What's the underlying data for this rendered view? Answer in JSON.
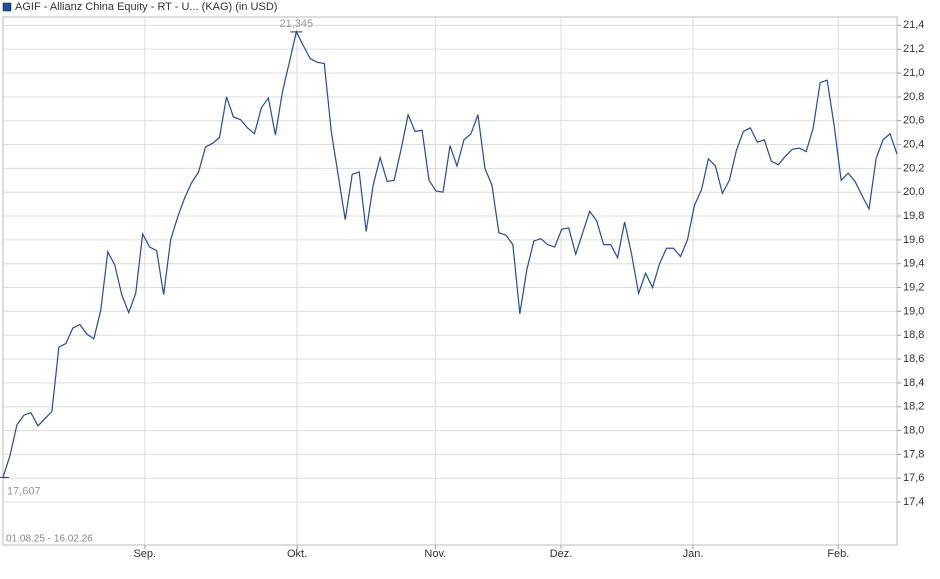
{
  "chart_data": {
    "type": "line",
    "title": "AGIF - Allianz China Equity - RT - U... (KAG) (in USD)",
    "date_range": "01.08.25 - 16.02.26",
    "series": [
      {
        "name": "AGIF - Allianz China Equity - RT - U... (KAG) (in USD)",
        "color": "#1f4e9c",
        "values": [
          17.607,
          17.79,
          18.05,
          18.13,
          18.15,
          18.04,
          18.1,
          18.16,
          18.7,
          18.73,
          18.86,
          18.89,
          18.81,
          18.77,
          19.01,
          19.5,
          19.39,
          19.14,
          18.99,
          19.15,
          19.65,
          19.54,
          19.51,
          19.14,
          19.6,
          19.79,
          19.95,
          20.08,
          20.17,
          20.38,
          20.41,
          20.46,
          20.8,
          20.63,
          20.61,
          20.54,
          20.49,
          20.71,
          20.79,
          20.48,
          20.84,
          21.09,
          21.345,
          21.23,
          21.12,
          21.09,
          21.08,
          20.51,
          20.14,
          19.77,
          20.15,
          20.17,
          19.67,
          20.06,
          20.29,
          20.09,
          20.1,
          20.36,
          20.65,
          20.51,
          20.52,
          20.1,
          20.01,
          20.0,
          20.39,
          20.22,
          20.44,
          20.49,
          20.65,
          20.2,
          20.06,
          19.66,
          19.64,
          19.56,
          18.98,
          19.35,
          19.59,
          19.61,
          19.56,
          19.54,
          19.69,
          19.7,
          19.48,
          19.66,
          19.84,
          19.76,
          19.56,
          19.56,
          19.45,
          19.75,
          19.48,
          19.15,
          19.32,
          19.2,
          19.4,
          19.53,
          19.53,
          19.46,
          19.6,
          19.89,
          20.02,
          20.28,
          20.22,
          19.99,
          20.1,
          20.35,
          20.51,
          20.54,
          20.42,
          20.44,
          20.26,
          20.23,
          20.3,
          20.36,
          20.37,
          20.34,
          20.54,
          20.92,
          20.94,
          20.56,
          20.1,
          20.16,
          20.09,
          19.97,
          19.86,
          20.28,
          20.44,
          20.49,
          20.32
        ]
      }
    ],
    "max_label": {
      "value": 21.345,
      "label": "21,345"
    },
    "min_label": {
      "value": 17.607,
      "label": "17,607"
    },
    "xticks": [
      {
        "value": 20.3,
        "label": "Sep."
      },
      {
        "value": 42.1,
        "label": "Okt."
      },
      {
        "value": 61.9,
        "label": "Nov."
      },
      {
        "value": 79.9,
        "label": "Dez."
      },
      {
        "value": 98.8,
        "label": "Jan."
      },
      {
        "value": 119.6,
        "label": "Feb."
      }
    ],
    "ylim": [
      17.04,
      21.47
    ],
    "yticks": [
      {
        "value": 17.4,
        "label": "17,4"
      },
      {
        "value": 17.6,
        "label": "17,6"
      },
      {
        "value": 17.8,
        "label": "17,8"
      },
      {
        "value": 18.0,
        "label": "18,0"
      },
      {
        "value": 18.2,
        "label": "18,2"
      },
      {
        "value": 18.4,
        "label": "18,4"
      },
      {
        "value": 18.6,
        "label": "18,6"
      },
      {
        "value": 18.8,
        "label": "18,8"
      },
      {
        "value": 19.0,
        "label": "19,0"
      },
      {
        "value": 19.2,
        "label": "19,2"
      },
      {
        "value": 19.4,
        "label": "19,4"
      },
      {
        "value": 19.6,
        "label": "19,6"
      },
      {
        "value": 19.8,
        "label": "19,8"
      },
      {
        "value": 20.0,
        "label": "20,0"
      },
      {
        "value": 20.2,
        "label": "20,2"
      },
      {
        "value": 20.4,
        "label": "20,4"
      },
      {
        "value": 20.6,
        "label": "20,6"
      },
      {
        "value": 20.8,
        "label": "20,8"
      },
      {
        "value": 21.0,
        "label": "21,0"
      },
      {
        "value": 21.2,
        "label": "21,2"
      },
      {
        "value": 21.4,
        "label": "21,4"
      }
    ],
    "grid": true
  }
}
